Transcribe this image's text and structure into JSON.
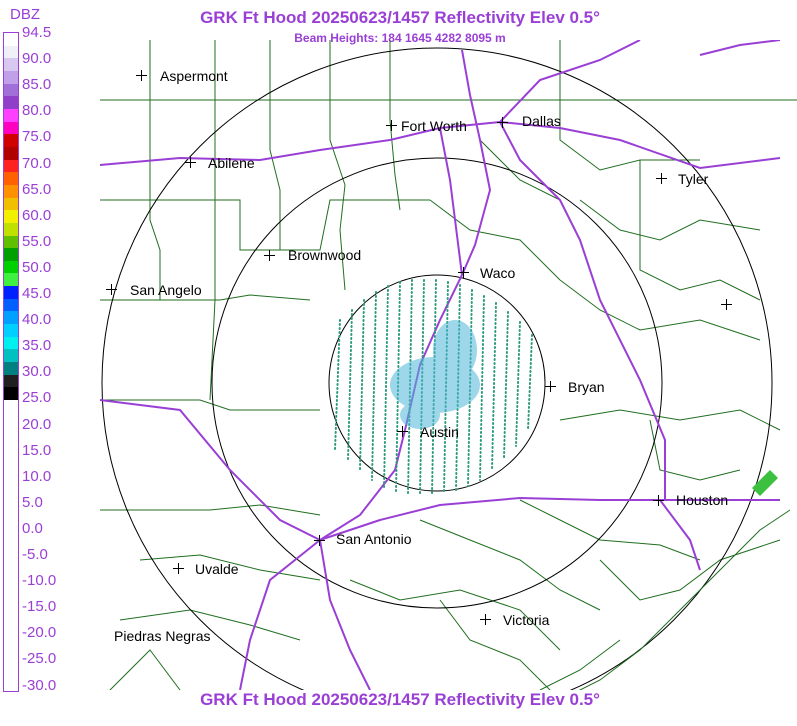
{
  "header": {
    "title": "GRK Ft Hood 20250623/1457 Reflectivity Elev 0.5°",
    "subtitle": "Beam Heights: 184 1645 4282 8095 m",
    "bottom_title": "GRK Ft Hood 20250623/1457 Reflectivity Elev 0.5°"
  },
  "legend": {
    "title": "DBZ",
    "labels": [
      "94.5",
      "90.0",
      "85.0",
      "80.0",
      "75.0",
      "70.0",
      "65.0",
      "60.0",
      "55.0",
      "50.0",
      "45.0",
      "40.0",
      "35.0",
      "30.0",
      "25.0",
      "20.0",
      "15.0",
      "10.0",
      "5.0",
      "0.0",
      "-5.0",
      "-10.0",
      "-15.0",
      "-20.0",
      "-25.0",
      "-30.0"
    ],
    "colors": [
      "#ffffff",
      "#f0f0f8",
      "#d8c8f0",
      "#c0a0e8",
      "#a070d8",
      "#9040c8",
      "#ff40ff",
      "#ff00c0",
      "#d00000",
      "#b00000",
      "#ff2020",
      "#ff6000",
      "#ff9000",
      "#f0c000",
      "#f0f000",
      "#c0e000",
      "#60c000",
      "#00a000",
      "#00d000",
      "#40f040",
      "#0020ff",
      "#0060ff",
      "#00a0ff",
      "#00d0ff",
      "#00f0f0",
      "#00c0c0",
      "#008080",
      "#202020",
      "#000000",
      "#ffffff",
      "#ffffff",
      "#ffffff",
      "#ffffff",
      "#ffffff",
      "#ffffff",
      "#ffffff",
      "#ffffff",
      "#ffffff",
      "#ffffff",
      "#ffffff",
      "#ffffff",
      "#ffffff",
      "#ffffff",
      "#ffffff",
      "#ffffff",
      "#ffffff",
      "#ffffff",
      "#ffffff",
      "#ffffff",
      "#ffffff",
      "#ffffff",
      "#ffffff"
    ]
  },
  "cities": [
    {
      "name": "Aspermont"
    },
    {
      "name": "Fort Worth"
    },
    {
      "name": "Dallas"
    },
    {
      "name": "Abilene"
    },
    {
      "name": "Tyler"
    },
    {
      "name": "Brownwood"
    },
    {
      "name": "Waco"
    },
    {
      "name": "San Angelo"
    },
    {
      "name": "Bryan"
    },
    {
      "name": "Austin"
    },
    {
      "name": "Houston"
    },
    {
      "name": "San Antonio"
    },
    {
      "name": "Uvalde"
    },
    {
      "name": "Victoria"
    },
    {
      "name": "Piedras Negras"
    },
    {
      "name": ""
    }
  ],
  "colors": {
    "title": "#9a3fd6",
    "county_lines": "#1f6e1f",
    "highways": "#9a3fd6",
    "range_rings": "#000000"
  }
}
